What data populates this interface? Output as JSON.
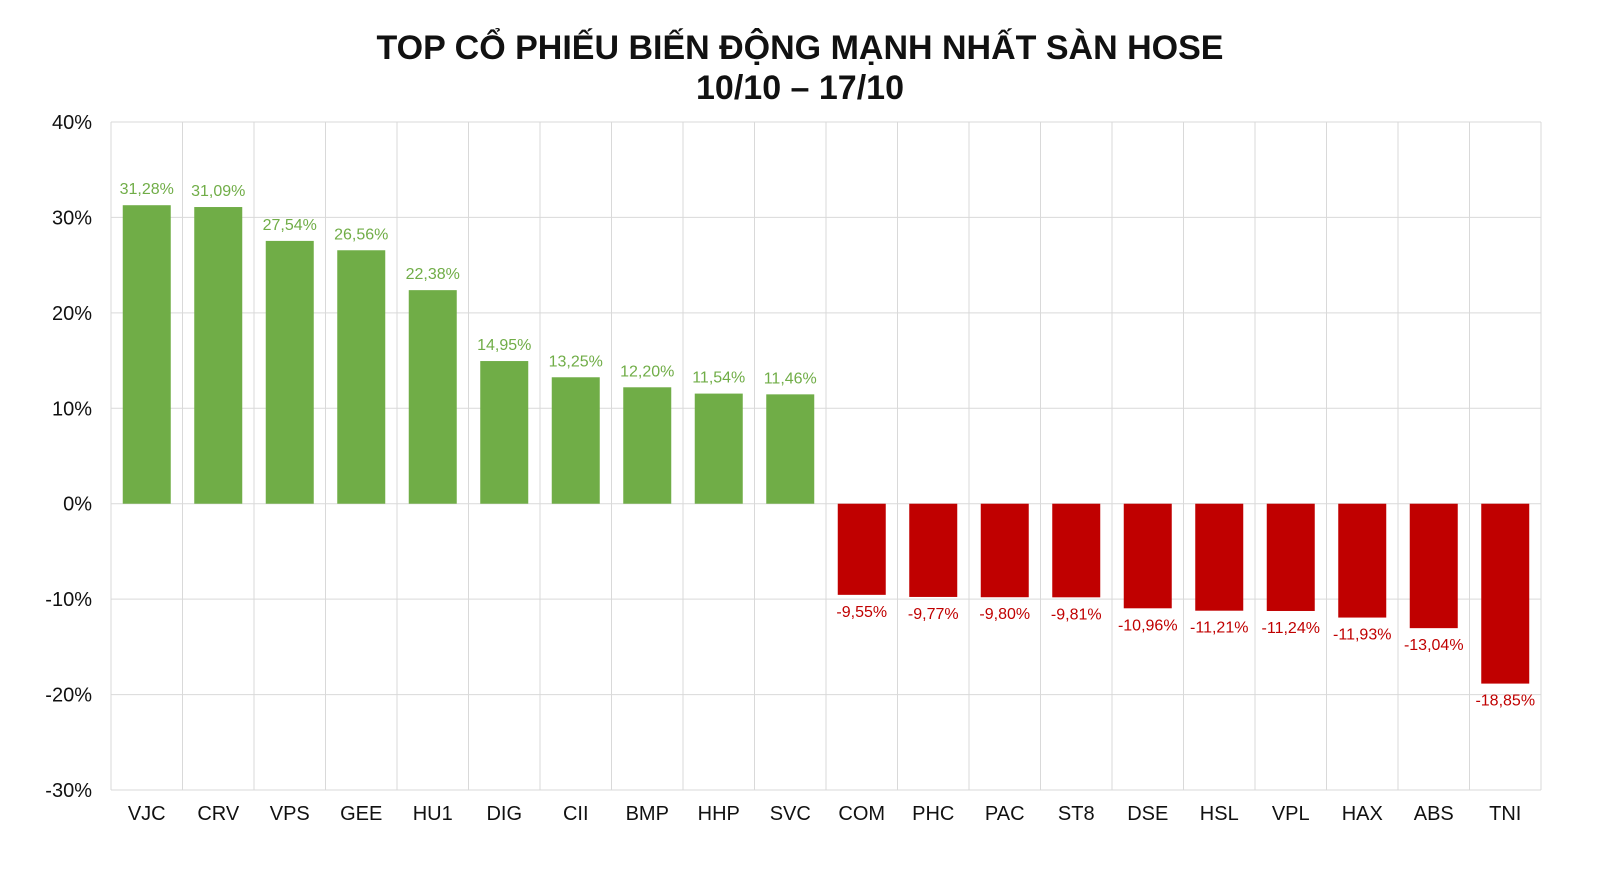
{
  "chart_data": {
    "type": "bar",
    "title": "TOP CỔ PHIẾU BIẾN ĐỘNG MẠNH NHẤT SÀN HOSE",
    "subtitle": "10/10 – 17/10",
    "xlabel": "",
    "ylabel": "",
    "ylim": [
      -30,
      40
    ],
    "yticks": [
      "40%",
      "30%",
      "20%",
      "10%",
      "0%",
      "-10%",
      "-20%",
      "-30%"
    ],
    "ytick_values": [
      40,
      30,
      20,
      10,
      0,
      -10,
      -20,
      -30
    ],
    "grid": true,
    "legend": "none",
    "categories": [
      "VJC",
      "CRV",
      "VPS",
      "GEE",
      "HU1",
      "DIG",
      "CII",
      "BMP",
      "HHP",
      "SVC",
      "COM",
      "PHC",
      "PAC",
      "ST8",
      "DSE",
      "HSL",
      "VPL",
      "HAX",
      "ABS",
      "TNI"
    ],
    "values": [
      31.28,
      31.09,
      27.54,
      26.56,
      22.38,
      14.95,
      13.25,
      12.2,
      11.54,
      11.46,
      -9.55,
      -9.77,
      -9.8,
      -9.81,
      -10.96,
      -11.21,
      -11.24,
      -11.93,
      -13.04,
      -18.85
    ],
    "data_labels": [
      "31,28%",
      "31,09%",
      "27,54%",
      "26,56%",
      "22,38%",
      "14,95%",
      "13,25%",
      "12,20%",
      "11,54%",
      "11,46%",
      "-9,55%",
      "-9,77%",
      "-9,80%",
      "-9,81%",
      "-10,96%",
      "-11,21%",
      "-11,24%",
      "-11,93%",
      "-13,04%",
      "-18,85%"
    ],
    "colors": {
      "positive": "#70ad47",
      "negative": "#c00000",
      "grid": "#d9d9d9"
    }
  }
}
